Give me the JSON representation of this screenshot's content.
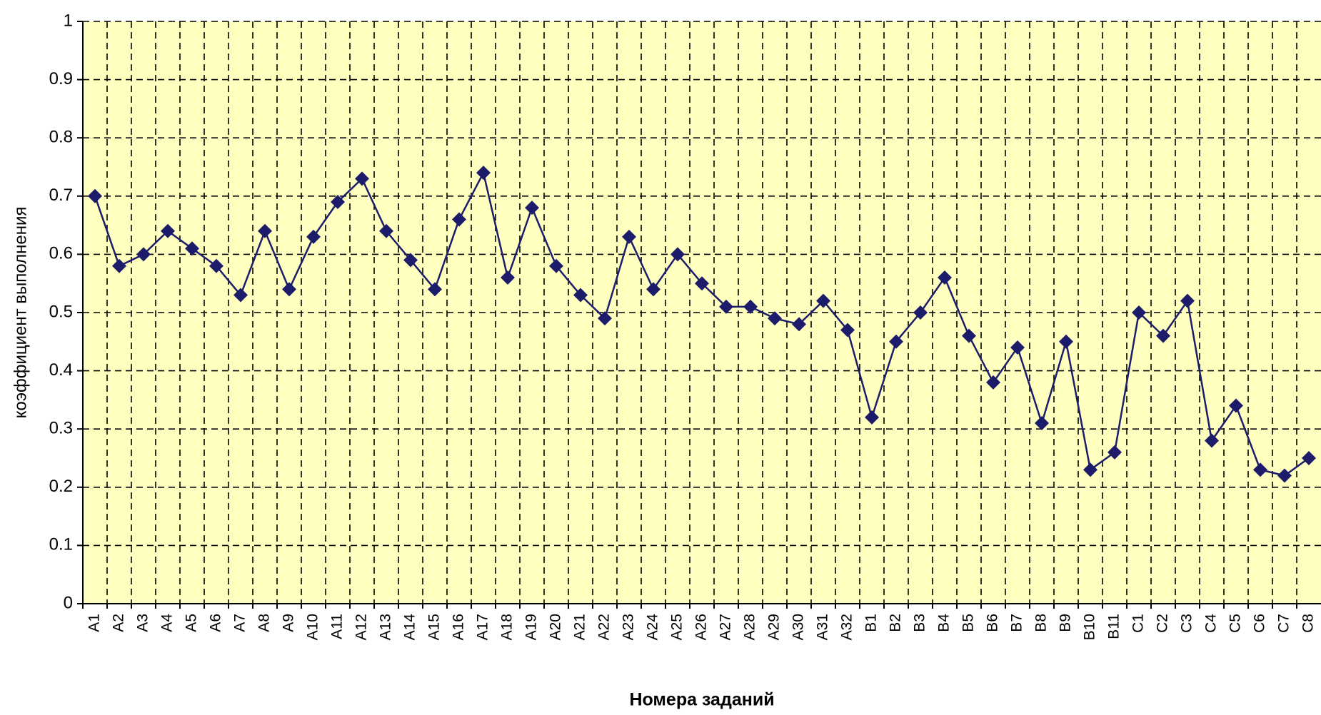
{
  "chart_data": {
    "type": "line",
    "x_label": "Номера заданий",
    "y_label": "коэффициент выполнения",
    "categories": [
      "A1",
      "A2",
      "A3",
      "A4",
      "A5",
      "A6",
      "A7",
      "A8",
      "A9",
      "A10",
      "A11",
      "A12",
      "A13",
      "A14",
      "A15",
      "A16",
      "A17",
      "A18",
      "A19",
      "A20",
      "A21",
      "A22",
      "A23",
      "A24",
      "A25",
      "A26",
      "A27",
      "A28",
      "A29",
      "A30",
      "A31",
      "A32",
      "B1",
      "B2",
      "B3",
      "B4",
      "B5",
      "B6",
      "B7",
      "B8",
      "B9",
      "B10",
      "B11",
      "C1",
      "C2",
      "C3",
      "C4",
      "C5",
      "C6",
      "C7",
      "C8"
    ],
    "values": [
      0.7,
      0.58,
      0.6,
      0.64,
      0.61,
      0.58,
      0.53,
      0.64,
      0.54,
      0.63,
      0.69,
      0.73,
      0.64,
      0.59,
      0.54,
      0.66,
      0.74,
      0.56,
      0.68,
      0.58,
      0.53,
      0.49,
      0.63,
      0.54,
      0.6,
      0.55,
      0.51,
      0.51,
      0.49,
      0.48,
      0.52,
      0.47,
      0.32,
      0.45,
      0.5,
      0.56,
      0.46,
      0.38,
      0.44,
      0.31,
      0.45,
      0.23,
      0.26,
      0.5,
      0.46,
      0.52,
      0.28,
      0.34,
      0.23,
      0.22,
      0.25
    ],
    "color": "#1c1c6b",
    "background": "#ffffc0",
    "ylim": [
      0,
      1
    ],
    "yticks": [
      0,
      0.1,
      0.2,
      0.3,
      0.4,
      0.5,
      0.6,
      0.7,
      0.8,
      0.9,
      1
    ],
    "grid": true
  }
}
